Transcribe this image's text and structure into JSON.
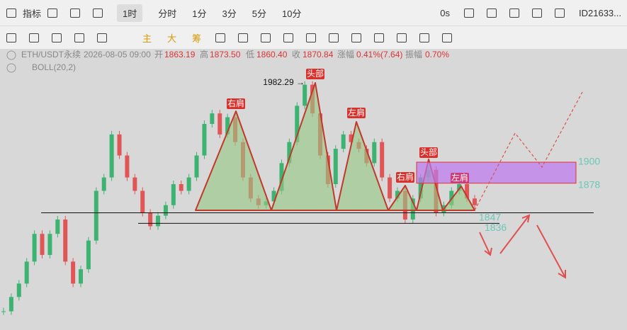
{
  "toolbar": {
    "indicator": "指标",
    "active_interval": "1时",
    "intervals": [
      "分时",
      "1分",
      "3分",
      "5分",
      "10分"
    ],
    "timer": "0s",
    "account": "ID21633..."
  },
  "draw_toolbar": {
    "items": [
      "主",
      "大",
      "筹"
    ]
  },
  "info": {
    "symbol": "ETH/USDT永续",
    "time": "2026-08-05 09:00",
    "open_label": "开",
    "open": "1863.19",
    "high_label": "高",
    "high": "1873.50",
    "low_label": "低",
    "low": "1860.40",
    "close_label": "收",
    "close": "1870.84",
    "change_label": "涨幅",
    "change": "0.41%(7.64)",
    "amplitude_label": "振幅",
    "amplitude": "0.70%",
    "indicator": "BOLL(20,2)"
  },
  "chart_data": {
    "type": "candlestick",
    "closes": [
      1744,
      1759,
      1773,
      1796,
      1825,
      1803,
      1825,
      1840,
      1796,
      1773,
      1788,
      1818,
      1870,
      1884,
      1929,
      1907,
      1884,
      1870,
      1847,
      1833,
      1844,
      1855,
      1877,
      1870,
      1884,
      1907,
      1940,
      1951,
      1929,
      1947,
      1921,
      1884,
      1862,
      1855,
      1859,
      1870,
      1899,
      1921,
      1959,
      1981,
      1951,
      1907,
      1877,
      1914,
      1929,
      1921,
      1914,
      1899,
      1921,
      1884,
      1862,
      1870,
      1840,
      1862,
      1884,
      1892,
      1847,
      1855,
      1870,
      1877,
      1862,
      1855
    ],
    "high_marker": {
      "value": 1982.29,
      "label": "1982.29 →"
    },
    "zone": {
      "top": 1900,
      "bottom": 1878
    },
    "support_lines": [
      1847,
      1836
    ],
    "annotations": [
      "右肩",
      "头部",
      "左肩",
      "右肩",
      "头部",
      "左肩"
    ]
  }
}
